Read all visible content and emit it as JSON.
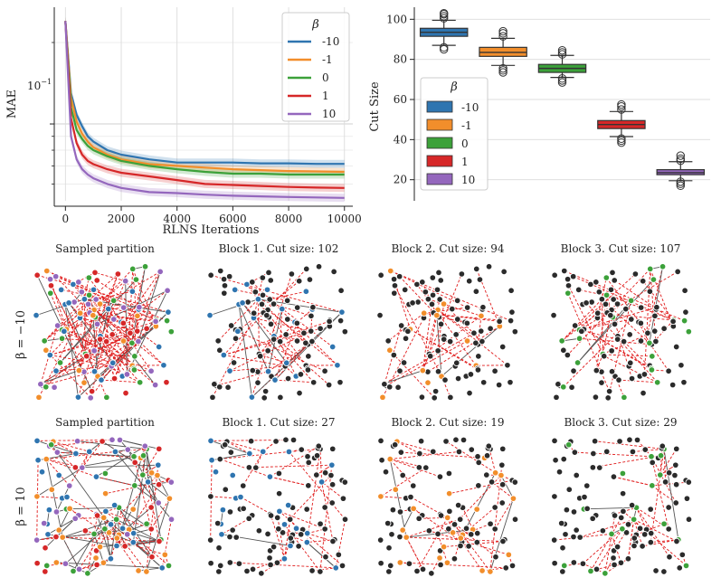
{
  "figure": {
    "line_chart": {
      "xlabel": "RLNS Iterations",
      "ylabel": "MAE",
      "x_ticks": [
        "0",
        "2000",
        "4000",
        "6000",
        "8000",
        "10000"
      ],
      "y_tick_label": "10",
      "y_tick_exp": "−1",
      "legend_title": "β"
    },
    "box_chart": {
      "ylabel": "Cut Size",
      "y_ticks": [
        "20",
        "40",
        "60",
        "80",
        "100"
      ],
      "legend_title": "β"
    },
    "panels": {
      "row_labels": [
        "β = −10",
        "β = 10"
      ],
      "row1_titles": [
        "Sampled partition",
        "Block 1. Cut size: 102",
        "Block 2. Cut size: 94",
        "Block 3. Cut size: 107"
      ],
      "row2_titles": [
        "Sampled partition",
        "Block 1. Cut size: 27",
        "Block 2. Cut size: 19",
        "Block 3. Cut size: 29"
      ]
    }
  },
  "colors": {
    "beta_-10": "#2f75b0",
    "beta_-1": "#f28e2b",
    "beta_0": "#3ca13a",
    "beta_1": "#d62728",
    "beta_10": "#9467bd",
    "node_gray": "#2b2b2b",
    "cut_edge": "#e01c1c",
    "internal_edge": "#555555"
  },
  "chart_data": [
    {
      "type": "line",
      "title": "",
      "xlabel": "RLNS Iterations",
      "ylabel": "MAE",
      "yscale": "log",
      "xlim": [
        -400,
        10300
      ],
      "ylim": [
        0.052,
        0.27
      ],
      "grid": true,
      "legend_title": "β",
      "legend_position": "top-right",
      "x": [
        0,
        200,
        400,
        600,
        800,
        1000,
        1500,
        2000,
        3000,
        4000,
        5000,
        6000,
        7000,
        8000,
        9000,
        10000
      ],
      "series": [
        {
          "name": "-10",
          "color": "#2f75b0",
          "values": [
            0.24,
            0.13,
            0.108,
            0.098,
            0.09,
            0.086,
            0.08,
            0.077,
            0.074,
            0.072,
            0.072,
            0.072,
            0.0715,
            0.0715,
            0.0712,
            0.0712
          ]
        },
        {
          "name": "-1",
          "color": "#f28e2b",
          "values": [
            0.24,
            0.125,
            0.102,
            0.092,
            0.086,
            0.082,
            0.077,
            0.074,
            0.071,
            0.07,
            0.069,
            0.068,
            0.0675,
            0.067,
            0.0668,
            0.0665
          ]
        },
        {
          "name": "0",
          "color": "#3ca13a",
          "values": [
            0.24,
            0.115,
            0.095,
            0.088,
            0.083,
            0.08,
            0.076,
            0.073,
            0.07,
            0.068,
            0.0665,
            0.0655,
            0.0655,
            0.065,
            0.065,
            0.065
          ]
        },
        {
          "name": "1",
          "color": "#d62728",
          "values": [
            0.24,
            0.105,
            0.085,
            0.077,
            0.073,
            0.071,
            0.068,
            0.066,
            0.064,
            0.062,
            0.06,
            0.0595,
            0.059,
            0.0585,
            0.0582,
            0.058
          ]
        },
        {
          "name": "10",
          "color": "#9467bd",
          "values": [
            0.24,
            0.09,
            0.074,
            0.068,
            0.065,
            0.063,
            0.06,
            0.058,
            0.056,
            0.0555,
            0.0548,
            0.0543,
            0.054,
            0.0537,
            0.0535,
            0.0533
          ]
        }
      ]
    },
    {
      "type": "box",
      "title": "",
      "xlabel": "",
      "ylabel": "Cut Size",
      "ylim": [
        14,
        106
      ],
      "grid": true,
      "legend_title": "β",
      "legend_position": "bottom-left",
      "categories": [
        "-10",
        "-1",
        "0",
        "1",
        "10"
      ],
      "series": [
        {
          "name": "-10",
          "color": "#2f75b0",
          "q1": 91.5,
          "median": 93.5,
          "q3": 95.5,
          "whisker_low": 87,
          "whisker_high": 99.5,
          "outliers": [
            85,
            86,
            100.5,
            101.5,
            102.5,
            103
          ]
        },
        {
          "name": "-1",
          "color": "#f28e2b",
          "q1": 81.5,
          "median": 83.5,
          "q3": 86,
          "whisker_low": 77,
          "whisker_high": 90.5,
          "outliers": [
            73.5,
            74.5,
            75.5,
            91.5,
            93,
            94
          ]
        },
        {
          "name": "0",
          "color": "#3ca13a",
          "q1": 73.5,
          "median": 75.5,
          "q3": 77.5,
          "whisker_low": 71,
          "whisker_high": 82,
          "outliers": [
            68.5,
            69.5,
            70.5,
            82.5,
            83.5,
            84.5
          ]
        },
        {
          "name": "1",
          "color": "#d62728",
          "q1": 45.5,
          "median": 47.5,
          "q3": 49.5,
          "whisker_low": 41.5,
          "whisker_high": 54,
          "outliers": [
            38.5,
            39.5,
            40.5,
            55,
            56.5,
            57.5
          ]
        },
        {
          "name": "10",
          "color": "#9467bd",
          "q1": 22.5,
          "median": 23.5,
          "q3": 25,
          "whisker_low": 19.5,
          "whisker_high": 29,
          "outliers": [
            17,
            18,
            19,
            29.5,
            30.5,
            32
          ]
        }
      ]
    }
  ]
}
